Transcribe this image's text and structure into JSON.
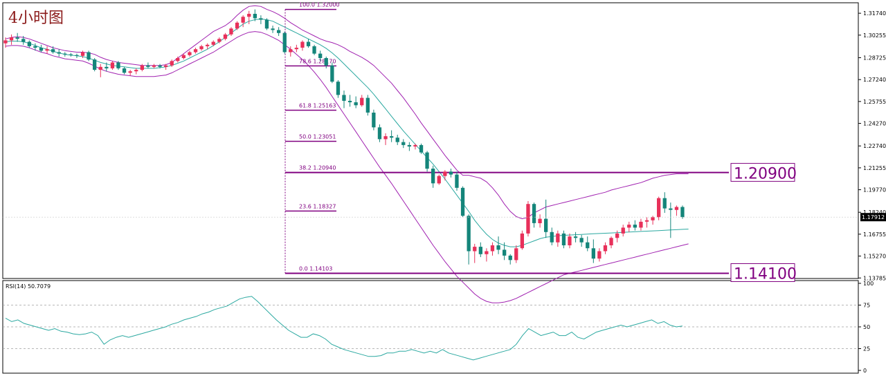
{
  "chart_data": [
    {
      "type": "candlestick",
      "title": "4小时图",
      "timeframe_label": "4小时图",
      "y_axis": {
        "ylim": [
          1.1375,
          1.3245
        ],
        "ticks": [
          "1.31740",
          "1.30255",
          "1.28725",
          "1.27240",
          "1.25755",
          "1.24270",
          "1.22740",
          "1.21255",
          "1.19770",
          "1.18240",
          "1.16755",
          "1.15270",
          "1.13785"
        ],
        "tick_values": [
          1.3174,
          1.30255,
          1.28725,
          1.2724,
          1.25755,
          1.2427,
          1.2274,
          1.21255,
          1.1977,
          1.1824,
          1.16755,
          1.1527,
          1.13785
        ]
      },
      "current_price": "1.17912",
      "current_price_value": 1.17912,
      "grid": false,
      "candles": [
        [
          1.297,
          1.301,
          1.294,
          1.299
        ],
        [
          1.299,
          1.303,
          1.296,
          1.301
        ],
        [
          1.301,
          1.304,
          1.298,
          1.3
        ],
        [
          1.3,
          1.302,
          1.296,
          1.298
        ],
        [
          1.298,
          1.299,
          1.294,
          1.295
        ],
        [
          1.295,
          1.297,
          1.292,
          1.294
        ],
        [
          1.294,
          1.296,
          1.291,
          1.292
        ],
        [
          1.292,
          1.295,
          1.29,
          1.293
        ],
        [
          1.293,
          1.295,
          1.29,
          1.291
        ],
        [
          1.291,
          1.293,
          1.288,
          1.29
        ],
        [
          1.29,
          1.291,
          1.288,
          1.2895
        ],
        [
          1.2895,
          1.2905,
          1.288,
          1.289
        ],
        [
          1.289,
          1.29,
          1.287,
          1.2885
        ],
        [
          1.2885,
          1.292,
          1.287,
          1.291
        ],
        [
          1.291,
          1.292,
          1.285,
          1.286
        ],
        [
          1.286,
          1.287,
          1.278,
          1.279
        ],
        [
          1.279,
          1.283,
          1.274,
          1.281
        ],
        [
          1.281,
          1.284,
          1.278,
          1.28
        ],
        [
          1.28,
          1.285,
          1.279,
          1.284
        ],
        [
          1.284,
          1.285,
          1.279,
          1.28
        ],
        [
          1.28,
          1.281,
          1.276,
          1.277
        ],
        [
          1.277,
          1.279,
          1.275,
          1.278
        ],
        [
          1.278,
          1.28,
          1.276,
          1.279
        ],
        [
          1.279,
          1.283,
          1.278,
          1.282
        ],
        [
          1.282,
          1.284,
          1.28,
          1.281
        ],
        [
          1.281,
          1.283,
          1.28,
          1.282
        ],
        [
          1.282,
          1.283,
          1.28,
          1.281
        ],
        [
          1.281,
          1.283,
          1.279,
          1.282
        ],
        [
          1.282,
          1.286,
          1.281,
          1.285
        ],
        [
          1.285,
          1.288,
          1.284,
          1.287
        ],
        [
          1.287,
          1.29,
          1.286,
          1.289
        ],
        [
          1.289,
          1.292,
          1.288,
          1.291
        ],
        [
          1.291,
          1.294,
          1.29,
          1.293
        ],
        [
          1.293,
          1.296,
          1.292,
          1.295
        ],
        [
          1.295,
          1.297,
          1.293,
          1.296
        ],
        [
          1.296,
          1.299,
          1.295,
          1.298
        ],
        [
          1.298,
          1.301,
          1.297,
          1.3
        ],
        [
          1.3,
          1.304,
          1.299,
          1.303
        ],
        [
          1.303,
          1.308,
          1.302,
          1.307
        ],
        [
          1.307,
          1.312,
          1.306,
          1.311
        ],
        [
          1.311,
          1.316,
          1.308,
          1.315
        ],
        [
          1.315,
          1.319,
          1.31,
          1.317
        ],
        [
          1.317,
          1.32,
          1.312,
          1.314
        ],
        [
          1.314,
          1.316,
          1.31,
          1.313
        ],
        [
          1.313,
          1.314,
          1.306,
          1.307
        ],
        [
          1.307,
          1.309,
          1.304,
          1.306
        ],
        [
          1.306,
          1.308,
          1.302,
          1.304
        ],
        [
          1.304,
          1.305,
          1.29,
          1.291
        ],
        [
          1.291,
          1.295,
          1.288,
          1.293
        ],
        [
          1.293,
          1.296,
          1.291,
          1.294
        ],
        [
          1.294,
          1.299,
          1.292,
          1.298
        ],
        [
          1.298,
          1.3,
          1.294,
          1.295
        ],
        [
          1.295,
          1.296,
          1.289,
          1.29
        ],
        [
          1.29,
          1.292,
          1.285,
          1.287
        ],
        [
          1.287,
          1.288,
          1.28,
          1.282
        ],
        [
          1.282,
          1.284,
          1.27,
          1.271
        ],
        [
          1.271,
          1.272,
          1.26,
          1.262
        ],
        [
          1.262,
          1.265,
          1.253,
          1.258
        ],
        [
          1.258,
          1.262,
          1.254,
          1.257
        ],
        [
          1.257,
          1.261,
          1.253,
          1.255
        ],
        [
          1.255,
          1.262,
          1.254,
          1.26
        ],
        [
          1.26,
          1.262,
          1.248,
          1.25
        ],
        [
          1.25,
          1.252,
          1.238,
          1.24
        ],
        [
          1.24,
          1.242,
          1.23,
          1.232
        ],
        [
          1.232,
          1.236,
          1.228,
          1.234
        ],
        [
          1.234,
          1.238,
          1.23,
          1.233
        ],
        [
          1.233,
          1.235,
          1.228,
          1.23
        ],
        [
          1.23,
          1.232,
          1.226,
          1.228
        ],
        [
          1.228,
          1.23,
          1.224,
          1.227
        ],
        [
          1.227,
          1.229,
          1.225,
          1.228
        ],
        [
          1.228,
          1.229,
          1.222,
          1.223
        ],
        [
          1.223,
          1.224,
          1.21,
          1.212
        ],
        [
          1.212,
          1.214,
          1.199,
          1.202
        ],
        [
          1.202,
          1.208,
          1.201,
          1.207
        ],
        [
          1.207,
          1.211,
          1.204,
          1.21
        ],
        [
          1.21,
          1.212,
          1.206,
          1.208
        ],
        [
          1.208,
          1.21,
          1.197,
          1.199
        ],
        [
          1.199,
          1.2,
          1.179,
          1.18
        ],
        [
          1.18,
          1.181,
          1.147,
          1.156
        ],
        [
          1.156,
          1.161,
          1.148,
          1.159
        ],
        [
          1.159,
          1.162,
          1.152,
          1.154
        ],
        [
          1.154,
          1.158,
          1.149,
          1.156
        ],
        [
          1.156,
          1.162,
          1.153,
          1.16
        ],
        [
          1.16,
          1.166,
          1.154,
          1.157
        ],
        [
          1.157,
          1.162,
          1.15,
          1.153
        ],
        [
          1.153,
          1.154,
          1.147,
          1.15
        ],
        [
          1.15,
          1.16,
          1.148,
          1.158
        ],
        [
          1.158,
          1.17,
          1.157,
          1.168
        ],
        [
          1.168,
          1.19,
          1.166,
          1.188
        ],
        [
          1.188,
          1.189,
          1.172,
          1.175
        ],
        [
          1.175,
          1.181,
          1.172,
          1.178
        ],
        [
          1.178,
          1.191,
          1.165,
          1.169
        ],
        [
          1.169,
          1.172,
          1.16,
          1.162
        ],
        [
          1.162,
          1.17,
          1.159,
          1.168
        ],
        [
          1.168,
          1.17,
          1.158,
          1.16
        ],
        [
          1.16,
          1.168,
          1.158,
          1.166
        ],
        [
          1.166,
          1.169,
          1.162,
          1.165
        ],
        [
          1.165,
          1.167,
          1.159,
          1.162
        ],
        [
          1.162,
          1.166,
          1.156,
          1.158
        ],
        [
          1.158,
          1.164,
          1.148,
          1.151
        ],
        [
          1.151,
          1.158,
          1.149,
          1.156
        ],
        [
          1.156,
          1.162,
          1.154,
          1.16
        ],
        [
          1.16,
          1.166,
          1.158,
          1.165
        ],
        [
          1.165,
          1.17,
          1.162,
          1.168
        ],
        [
          1.168,
          1.174,
          1.166,
          1.172
        ],
        [
          1.172,
          1.176,
          1.169,
          1.174
        ],
        [
          1.174,
          1.177,
          1.17,
          1.172
        ],
        [
          1.172,
          1.178,
          1.17,
          1.176
        ],
        [
          1.176,
          1.179,
          1.172,
          1.177
        ],
        [
          1.177,
          1.18,
          1.174,
          1.179
        ],
        [
          1.179,
          1.193,
          1.177,
          1.192
        ],
        [
          1.192,
          1.196,
          1.182,
          1.185
        ],
        [
          1.185,
          1.189,
          1.165,
          1.184
        ],
        [
          1.184,
          1.187,
          1.18,
          1.186
        ],
        [
          1.186,
          1.187,
          1.178,
          1.1791
        ]
      ],
      "bollinger": {
        "upper": [
          1.3,
          1.301,
          1.3015,
          1.301,
          1.3,
          1.2985,
          1.297,
          1.2955,
          1.294,
          1.293,
          1.292,
          1.2915,
          1.291,
          1.291,
          1.2905,
          1.2895,
          1.2875,
          1.286,
          1.285,
          1.284,
          1.2835,
          1.283,
          1.2825,
          1.282,
          1.282,
          1.282,
          1.282,
          1.2825,
          1.284,
          1.287,
          1.29,
          1.293,
          1.296,
          1.299,
          1.302,
          1.305,
          1.307,
          1.309,
          1.312,
          1.316,
          1.3195,
          1.322,
          1.3225,
          1.322,
          1.32,
          1.3185,
          1.3165,
          1.314,
          1.311,
          1.3085,
          1.306,
          1.304,
          1.302,
          1.3,
          1.2985,
          1.2975,
          1.296,
          1.294,
          1.2915,
          1.2895,
          1.2875,
          1.285,
          1.282,
          1.278,
          1.274,
          1.27,
          1.265,
          1.26,
          1.2545,
          1.249,
          1.243,
          1.2375,
          1.232,
          1.2265,
          1.221,
          1.216,
          1.211,
          1.2075,
          1.2075,
          1.2065,
          1.2055,
          1.203,
          1.199,
          1.194,
          1.188,
          1.183,
          1.1795,
          1.178,
          1.179,
          1.182,
          1.184,
          1.186,
          1.187,
          1.188,
          1.189,
          1.19,
          1.191,
          1.192,
          1.193,
          1.194,
          1.195,
          1.196,
          1.1975,
          1.1985,
          1.1995,
          1.2005,
          1.2015,
          1.2025,
          1.204,
          1.2055,
          1.2065,
          1.2075,
          1.208,
          1.2085,
          1.2085,
          1.2085
        ],
        "middle": [
          1.298,
          1.2985,
          1.2985,
          1.298,
          1.297,
          1.2955,
          1.294,
          1.293,
          1.2915,
          1.2905,
          1.2895,
          1.289,
          1.2885,
          1.288,
          1.287,
          1.2855,
          1.284,
          1.283,
          1.282,
          1.2815,
          1.281,
          1.2805,
          1.28,
          1.28,
          1.28,
          1.28,
          1.2805,
          1.281,
          1.282,
          1.2835,
          1.285,
          1.287,
          1.289,
          1.291,
          1.293,
          1.2955,
          1.298,
          1.301,
          1.304,
          1.307,
          1.31,
          1.312,
          1.313,
          1.3135,
          1.313,
          1.312,
          1.31,
          1.308,
          1.306,
          1.304,
          1.302,
          1.3,
          1.298,
          1.296,
          1.2935,
          1.2905,
          1.287,
          1.283,
          1.279,
          1.275,
          1.271,
          1.267,
          1.2625,
          1.2575,
          1.2525,
          1.2475,
          1.2425,
          1.2375,
          1.233,
          1.2285,
          1.224,
          1.2195,
          1.215,
          1.21,
          1.205,
          1.1995,
          1.194,
          1.1885,
          1.183,
          1.177,
          1.172,
          1.1675,
          1.164,
          1.1615,
          1.16,
          1.159,
          1.159,
          1.16,
          1.1615,
          1.163,
          1.1645,
          1.1655,
          1.166,
          1.1665,
          1.1668,
          1.167,
          1.1672,
          1.1674,
          1.1676,
          1.1678,
          1.168,
          1.1682,
          1.1684,
          1.1686,
          1.1688,
          1.169,
          1.1692,
          1.1694,
          1.1696,
          1.1698,
          1.17,
          1.1702,
          1.1704,
          1.1706,
          1.1708,
          1.171
        ],
        "lower": [
          1.295,
          1.2955,
          1.2955,
          1.295,
          1.294,
          1.2925,
          1.291,
          1.29,
          1.2885,
          1.2875,
          1.2865,
          1.286,
          1.2855,
          1.285,
          1.2835,
          1.2815,
          1.2795,
          1.278,
          1.277,
          1.276,
          1.2755,
          1.275,
          1.2745,
          1.2745,
          1.2745,
          1.2745,
          1.275,
          1.2755,
          1.277,
          1.279,
          1.281,
          1.283,
          1.285,
          1.287,
          1.289,
          1.291,
          1.2935,
          1.296,
          1.2985,
          1.301,
          1.303,
          1.3045,
          1.305,
          1.3045,
          1.303,
          1.301,
          1.299,
          1.296,
          1.293,
          1.2895,
          1.286,
          1.282,
          1.2775,
          1.2725,
          1.267,
          1.261,
          1.255,
          1.249,
          1.243,
          1.237,
          1.231,
          1.225,
          1.219,
          1.213,
          1.2075,
          1.202,
          1.196,
          1.19,
          1.184,
          1.178,
          1.172,
          1.166,
          1.16,
          1.1545,
          1.149,
          1.144,
          1.139,
          1.135,
          1.131,
          1.127,
          1.124,
          1.122,
          1.121,
          1.121,
          1.1215,
          1.1225,
          1.124,
          1.126,
          1.128,
          1.13,
          1.132,
          1.134,
          1.136,
          1.138,
          1.14,
          1.141,
          1.142,
          1.143,
          1.144,
          1.145,
          1.146,
          1.147,
          1.148,
          1.149,
          1.15,
          1.151,
          1.152,
          1.153,
          1.154,
          1.155,
          1.156,
          1.157,
          1.158,
          1.159,
          1.16,
          1.161
        ]
      },
      "fibonacci": {
        "levels": [
          {
            "label": "100.0  1.32000",
            "value": 1.32
          },
          {
            "label": "78.6  1.28170",
            "value": 1.2817
          },
          {
            "label": "61.8  1.25163",
            "value": 1.25163
          },
          {
            "label": "50.0  1.23051",
            "value": 1.23051
          },
          {
            "label": "38.2  1.20940",
            "value": 1.2094
          },
          {
            "label": "23.6  1.18327",
            "value": 1.18327
          },
          {
            "label": "0.0  1.14103",
            "value": 1.14103
          }
        ]
      },
      "annotations": [
        {
          "label": "1.20900",
          "value": 1.209
        },
        {
          "label": "1.14100",
          "value": 1.141
        }
      ],
      "colors": {
        "bull": "#e8305a",
        "bear": "#14857a",
        "band_outer": "#a020b0",
        "band_inner": "#2aa8a0",
        "fib": "#800080",
        "axis": "#000000"
      }
    },
    {
      "type": "line",
      "title": "RSI(14) 50.7079",
      "indicator_label": "RSI(14) 50.7079",
      "ylim": [
        0,
        100
      ],
      "y_ticks": [
        "100",
        "75",
        "50",
        "25",
        "0"
      ],
      "y_tick_values": [
        100,
        75,
        50,
        25,
        0
      ],
      "levels": [
        75,
        50,
        25
      ],
      "values": [
        60,
        56,
        58,
        54,
        52,
        50,
        48,
        46,
        48,
        45,
        44,
        42,
        41,
        42,
        44,
        40,
        30,
        35,
        38,
        40,
        38,
        40,
        42,
        44,
        46,
        48,
        50,
        53,
        55,
        58,
        60,
        62,
        65,
        67,
        70,
        72,
        74,
        78,
        82,
        84,
        85,
        79,
        72,
        65,
        58,
        52,
        46,
        42,
        38,
        38,
        42,
        40,
        36,
        30,
        27,
        24,
        22,
        20,
        18,
        16,
        16,
        17,
        20,
        20,
        22,
        22,
        24,
        22,
        20,
        22,
        20,
        24,
        20,
        18,
        16,
        14,
        12,
        14,
        16,
        18,
        20,
        22,
        24,
        30,
        40,
        48,
        44,
        40,
        42,
        44,
        40,
        40,
        44,
        38,
        36,
        40,
        44,
        46,
        48,
        50,
        52,
        50,
        52,
        54,
        56,
        58,
        54,
        56,
        52,
        50,
        51
      ]
    }
  ]
}
